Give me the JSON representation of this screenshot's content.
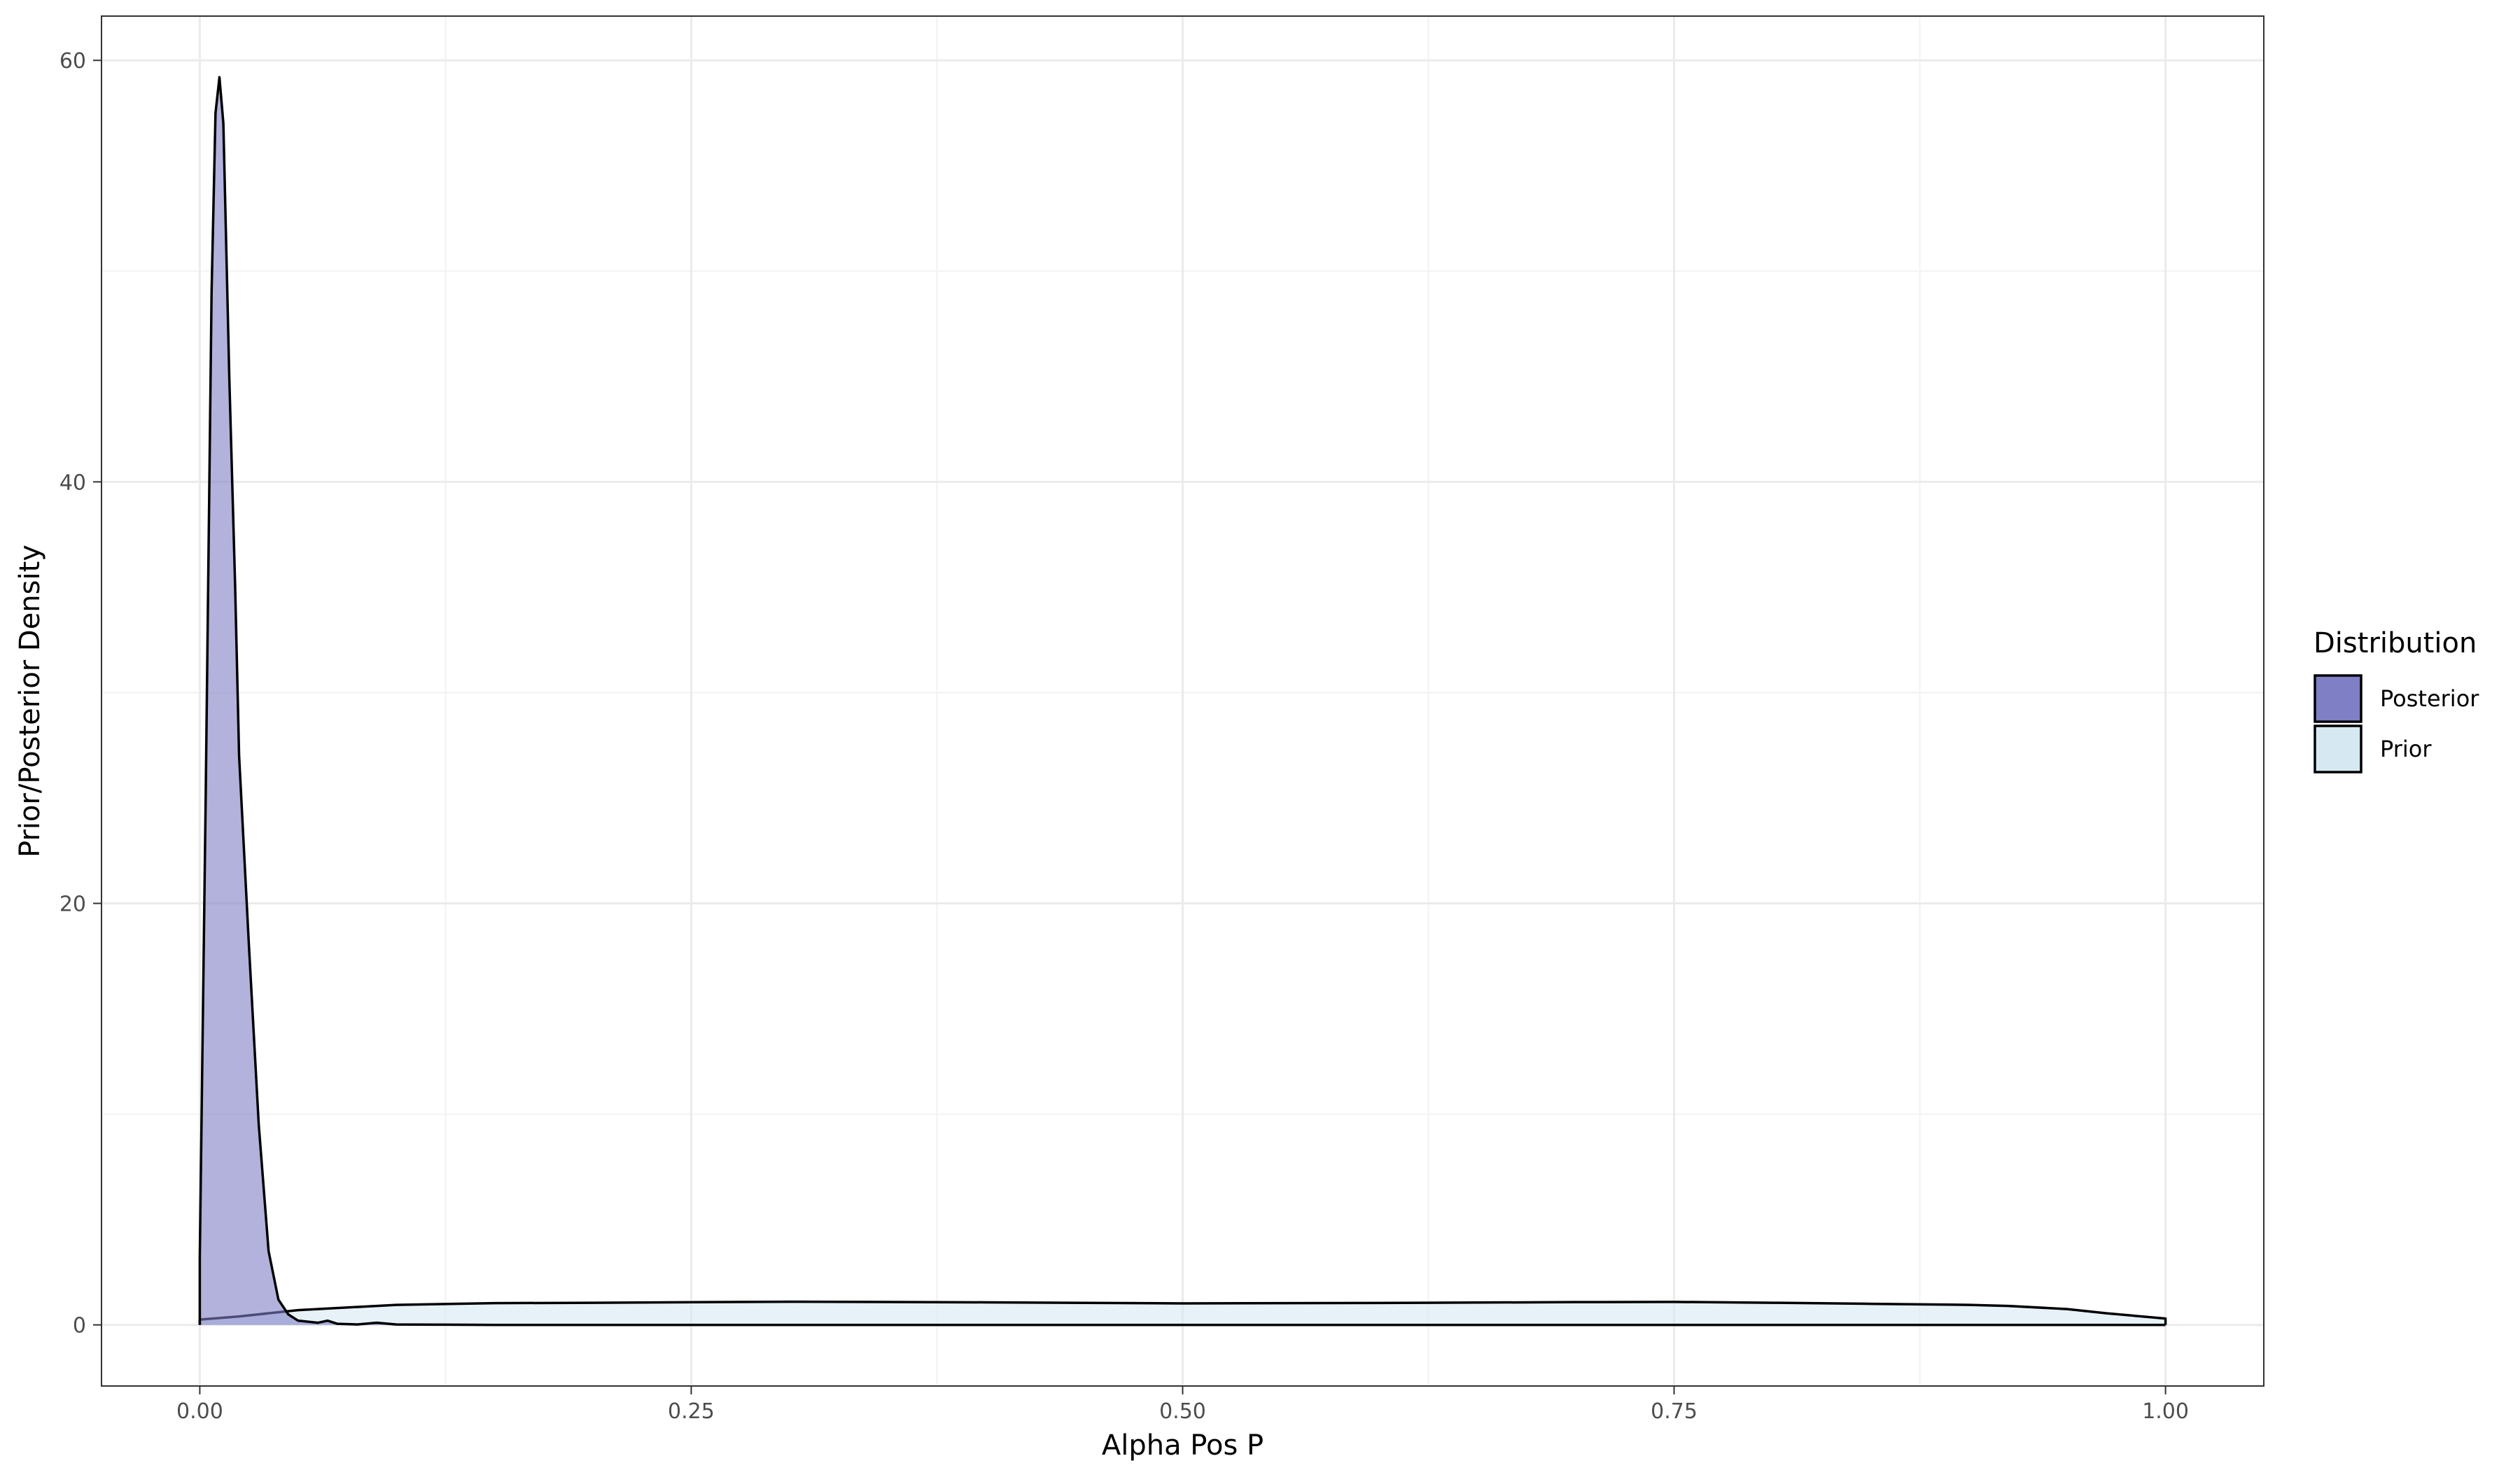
{
  "chart_data": {
    "type": "area",
    "xlabel": "Alpha Pos P",
    "ylabel": "Prior/Posterior Density",
    "xlim": [
      -0.05,
      1.05
    ],
    "ylim": [
      -2.9,
      62.1
    ],
    "xticks": [
      0.0,
      0.25,
      0.5,
      0.75,
      1.0
    ],
    "xtick_labels": [
      "0.00",
      "0.25",
      "0.50",
      "0.75",
      "1.00"
    ],
    "yticks": [
      0,
      20,
      40,
      60
    ],
    "ytick_labels": [
      "0",
      "20",
      "40",
      "60"
    ],
    "grid": true,
    "legend": {
      "title": "Distribution",
      "position": "right",
      "entries": [
        {
          "name": "Posterior",
          "color": "#7f7fc6"
        },
        {
          "name": "Prior",
          "color": "#d6e9f2"
        }
      ]
    },
    "series": [
      {
        "name": "Posterior",
        "fill": "#7f7fc6",
        "fill_opacity": 0.6,
        "x": [
          0.0,
          0.003,
          0.006,
          0.008,
          0.01,
          0.012,
          0.015,
          0.018,
          0.02,
          0.025,
          0.03,
          0.035,
          0.04,
          0.045,
          0.05,
          0.055,
          0.06,
          0.065,
          0.07,
          0.08,
          0.09,
          0.1,
          0.12,
          0.15,
          0.2,
          0.3,
          0.5,
          0.75,
          1.0
        ],
        "y": [
          3.2,
          25.0,
          49.0,
          57.5,
          59.2,
          57.0,
          45.0,
          35.0,
          27.0,
          18.0,
          9.5,
          3.5,
          1.2,
          0.5,
          0.2,
          0.15,
          0.1,
          0.2,
          0.05,
          0.02,
          0.1,
          0.02,
          0.01,
          0.0,
          0.0,
          0.0,
          0.0,
          0.0,
          0.0
        ]
      },
      {
        "name": "Prior",
        "fill": "#d6e9f2",
        "fill_opacity": 0.6,
        "x": [
          0.0,
          0.02,
          0.05,
          0.08,
          0.1,
          0.15,
          0.2,
          0.3,
          0.4,
          0.5,
          0.6,
          0.7,
          0.75,
          0.8,
          0.85,
          0.9,
          0.92,
          0.95,
          0.97,
          1.0
        ],
        "y": [
          0.25,
          0.4,
          0.7,
          0.85,
          0.95,
          1.03,
          1.05,
          1.1,
          1.07,
          1.02,
          1.04,
          1.08,
          1.09,
          1.05,
          1.0,
          0.95,
          0.9,
          0.75,
          0.55,
          0.3
        ]
      }
    ]
  }
}
